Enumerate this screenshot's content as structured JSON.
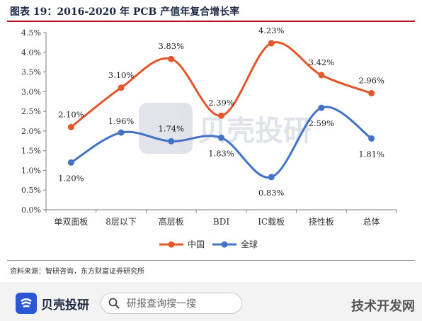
{
  "figure_title": "图表 19：2016-2020 年 PCB 产值年复合增长率",
  "source_note": "资料来源：智研咨询，东方财富证券研究所",
  "brand": {
    "name": "贝壳投研",
    "search_placeholder": "研报查询搜一搜",
    "site": "技术开发网"
  },
  "watermark": {
    "text": "贝壳投研"
  },
  "colors": {
    "china": "#e2572b",
    "global": "#4472c4",
    "axis": "#7f7f7f",
    "title_rule": "#b5121b"
  },
  "chart_data": {
    "type": "line",
    "categories": [
      "单双面板",
      "8层以下",
      "高层板",
      "BDI",
      "IC载板",
      "挠性板",
      "总体"
    ],
    "ylim": [
      0,
      4.5
    ],
    "y_ticks": [
      "0.0%",
      "0.5%",
      "1.0%",
      "1.5%",
      "2.0%",
      "2.5%",
      "3.0%",
      "3.5%",
      "4.0%",
      "4.5%"
    ],
    "grid": false,
    "legend_position": "bottom",
    "series": [
      {
        "name": "中国",
        "values": [
          2.1,
          3.1,
          3.83,
          2.39,
          4.23,
          3.42,
          2.96
        ],
        "labels": [
          "2.10%",
          "3.10%",
          "3.83%",
          "2.39%",
          "4.23%",
          "3.42%",
          "2.96%"
        ]
      },
      {
        "name": "全球",
        "values": [
          1.2,
          1.96,
          1.74,
          1.83,
          0.83,
          2.59,
          1.81
        ],
        "labels": [
          "1.20%",
          "1.96%",
          "1.74%",
          "1.83%",
          "0.83%",
          "2.59%",
          "1.81%"
        ]
      }
    ]
  }
}
